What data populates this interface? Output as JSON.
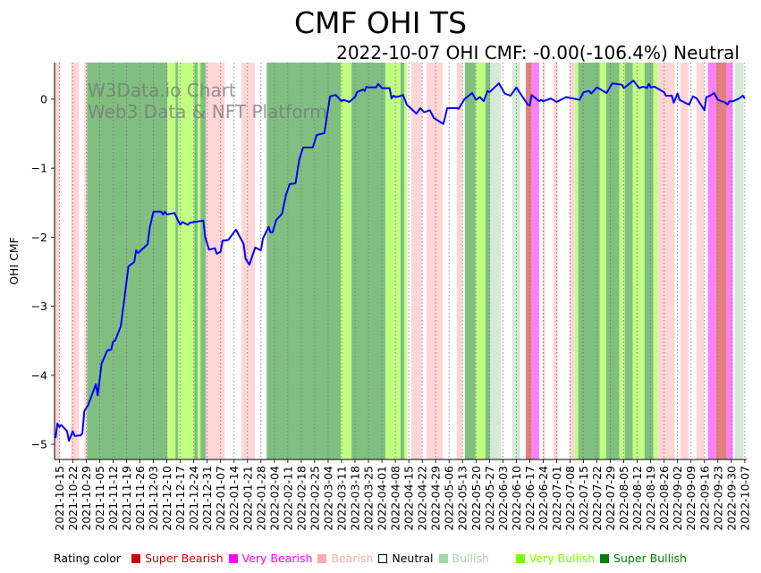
{
  "title": "CMF OHI TS",
  "subtitle": "2022-10-07 OHI CMF: -0.00(-106.4%) Neutral",
  "watermark": [
    "W3Data.io Chart",
    "Web3 Data & NFT Platform"
  ],
  "legend": {
    "label": "Rating color",
    "items": [
      {
        "key": "super_bearish",
        "label": "Super Bearish",
        "color": "#cc0000",
        "band": "#e67f7f"
      },
      {
        "key": "very_bearish",
        "label": "Very Bearish",
        "color": "#ff00ff",
        "band": "#ff80ff"
      },
      {
        "key": "bearish",
        "label": "Bearish",
        "color": "#ffaaaa",
        "band": "#ffd5d5"
      },
      {
        "key": "neutral",
        "label": "Neutral",
        "color": "#000000",
        "band": "#ffffff"
      },
      {
        "key": "bullish",
        "label": "Bullish",
        "color": "#a8d5a8",
        "band": "#d4ead4"
      },
      {
        "key": "very_bullish",
        "label": "Very Bullish",
        "color": "#77ff00",
        "band": "#c0ff80"
      },
      {
        "key": "super_bullish",
        "label": "Super Bullish",
        "color": "#008000",
        "band": "#80bf80"
      }
    ]
  },
  "chart_data": {
    "type": "line",
    "title": "CMF OHI TS",
    "xlabel": "",
    "ylabel": "OHI CMF",
    "x_unit": "days since 2021-10-15",
    "xlim": [
      -2.5,
      358
    ],
    "ylim": [
      -5.22,
      0.53
    ],
    "yticks": [
      0,
      -1,
      -2,
      -3,
      -4,
      -5
    ],
    "ytick_labels": [
      "0",
      "−1",
      "−2",
      "−3",
      "−4",
      "−5"
    ],
    "xtick_step_days": 7,
    "xtick_labels": [
      "2021-10-15",
      "2021-10-22",
      "2021-10-29",
      "2021-11-05",
      "2021-11-12",
      "2021-11-19",
      "2021-11-26",
      "2021-12-03",
      "2021-12-10",
      "2021-12-17",
      "2021-12-24",
      "2021-12-31",
      "2022-01-07",
      "2022-01-14",
      "2022-01-21",
      "2022-01-28",
      "2022-02-04",
      "2022-02-11",
      "2022-02-18",
      "2022-02-25",
      "2022-03-04",
      "2022-03-11",
      "2022-03-18",
      "2022-03-25",
      "2022-04-01",
      "2022-04-08",
      "2022-04-15",
      "2022-04-22",
      "2022-04-29",
      "2022-05-06",
      "2022-05-13",
      "2022-05-20",
      "2022-05-27",
      "2022-06-03",
      "2022-06-10",
      "2022-06-17",
      "2022-06-24",
      "2022-07-01",
      "2022-07-08",
      "2022-07-15",
      "2022-07-22",
      "2022-07-29",
      "2022-08-05",
      "2022-08-12",
      "2022-08-19",
      "2022-08-26",
      "2022-09-02",
      "2022-09-09",
      "2022-09-16",
      "2022-09-23",
      "2022-09-30",
      "2022-10-07"
    ],
    "grid": "vertical dotted",
    "series": [
      {
        "name": "OHI CMF",
        "color": "#0000ff",
        "points": [
          [
            -2,
            -4.91
          ],
          [
            -1,
            -4.7
          ],
          [
            0,
            -4.75
          ],
          [
            1,
            -4.72
          ],
          [
            4,
            -4.81
          ],
          [
            5,
            -4.95
          ],
          [
            7,
            -4.81
          ],
          [
            8,
            -4.88
          ],
          [
            11,
            -4.87
          ],
          [
            12,
            -4.84
          ],
          [
            13,
            -4.52
          ],
          [
            15,
            -4.43
          ],
          [
            19,
            -4.13
          ],
          [
            20,
            -4.29
          ],
          [
            22,
            -3.83
          ],
          [
            25,
            -3.64
          ],
          [
            27,
            -3.63
          ],
          [
            28,
            -3.51
          ],
          [
            29,
            -3.5
          ],
          [
            32,
            -3.29
          ],
          [
            36,
            -2.42
          ],
          [
            39,
            -2.36
          ],
          [
            40,
            -2.19
          ],
          [
            41,
            -2.23
          ],
          [
            46,
            -2.1
          ],
          [
            47,
            -1.87
          ],
          [
            49,
            -1.63
          ],
          [
            53,
            -1.63
          ],
          [
            54,
            -1.67
          ],
          [
            55,
            -1.63
          ],
          [
            56,
            -1.67
          ],
          [
            60,
            -1.65
          ],
          [
            61,
            -1.71
          ],
          [
            63,
            -1.82
          ],
          [
            64,
            -1.78
          ],
          [
            67,
            -1.82
          ],
          [
            68,
            -1.79
          ],
          [
            75,
            -1.76
          ],
          [
            76,
            -2.0
          ],
          [
            78,
            -2.18
          ],
          [
            81,
            -2.16
          ],
          [
            82,
            -2.24
          ],
          [
            84,
            -2.21
          ],
          [
            85,
            -2.05
          ],
          [
            88,
            -2.04
          ],
          [
            92,
            -1.89
          ],
          [
            96,
            -2.1
          ],
          [
            97,
            -2.31
          ],
          [
            99,
            -2.4
          ],
          [
            102,
            -2.15
          ],
          [
            105,
            -2.19
          ],
          [
            106,
            -2.02
          ],
          [
            109,
            -1.85
          ],
          [
            110,
            -1.93
          ],
          [
            111,
            -1.93
          ],
          [
            113,
            -1.75
          ],
          [
            116,
            -1.66
          ],
          [
            118,
            -1.39
          ],
          [
            120,
            -1.23
          ],
          [
            123,
            -1.22
          ],
          [
            125,
            -0.87
          ],
          [
            127,
            -0.7
          ],
          [
            132,
            -0.7
          ],
          [
            134,
            -0.52
          ],
          [
            138,
            -0.49
          ],
          [
            141,
            0.04
          ],
          [
            144,
            0.06
          ],
          [
            147,
            -0.03
          ],
          [
            148,
            -0.01
          ],
          [
            151,
            -0.04
          ],
          [
            153,
            0.01
          ],
          [
            154,
            0.03
          ],
          [
            155,
            0.1
          ],
          [
            158,
            0.14
          ],
          [
            159,
            0.12
          ],
          [
            160,
            0.18
          ],
          [
            161,
            0.17
          ],
          [
            165,
            0.17
          ],
          [
            166,
            0.22
          ],
          [
            168,
            0.16
          ],
          [
            172,
            0.16
          ],
          [
            173,
            0.01
          ],
          [
            174,
            0.05
          ],
          [
            175,
            0.03
          ],
          [
            177,
            0.04
          ],
          [
            179,
            0.06
          ],
          [
            181,
            -0.08
          ],
          [
            186,
            -0.21
          ],
          [
            188,
            -0.13
          ],
          [
            190,
            -0.19
          ],
          [
            193,
            -0.16
          ],
          [
            195,
            -0.27
          ],
          [
            200,
            -0.36
          ],
          [
            202,
            -0.13
          ],
          [
            207,
            -0.13
          ],
          [
            208,
            -0.14
          ],
          [
            211,
            0.0
          ],
          [
            215,
            0.09
          ],
          [
            217,
            -0.01
          ],
          [
            219,
            0.03
          ],
          [
            221,
            -0.03
          ],
          [
            223,
            0.12
          ],
          [
            224,
            0.1
          ],
          [
            229,
            0.23
          ],
          [
            232,
            0.08
          ],
          [
            235,
            0.05
          ],
          [
            238,
            0.17
          ],
          [
            244,
            -0.08
          ],
          [
            245,
            -0.09
          ],
          [
            246,
            0.06
          ],
          [
            250,
            -0.03
          ],
          [
            251,
            -0.01
          ],
          [
            252,
            -0.03
          ],
          [
            256,
            0.01
          ],
          [
            259,
            -0.04
          ],
          [
            264,
            0.03
          ],
          [
            271,
            -0.01
          ],
          [
            273,
            0.1
          ],
          [
            276,
            0.12
          ],
          [
            277,
            0.08
          ],
          [
            280,
            0.17
          ],
          [
            285,
            0.09
          ],
          [
            288,
            0.23
          ],
          [
            293,
            0.21
          ],
          [
            294,
            0.16
          ],
          [
            299,
            0.27
          ],
          [
            302,
            0.16
          ],
          [
            304,
            0.18
          ],
          [
            306,
            0.16
          ],
          [
            307,
            0.22
          ],
          [
            308,
            0.17
          ],
          [
            310,
            0.18
          ],
          [
            315,
            0.1
          ],
          [
            316,
            0.05
          ],
          [
            319,
            0.05
          ],
          [
            320,
            -0.05
          ],
          [
            322,
            0.08
          ],
          [
            323,
            -0.01
          ],
          [
            328,
            -0.08
          ],
          [
            330,
            0.04
          ],
          [
            332,
            0.01
          ],
          [
            336,
            -0.16
          ],
          [
            337,
            0.03
          ],
          [
            339,
            0.05
          ],
          [
            341,
            0.09
          ],
          [
            343,
            -0.01
          ],
          [
            347,
            -0.05
          ],
          [
            348,
            -0.08
          ],
          [
            349,
            -0.03
          ],
          [
            351,
            -0.03
          ],
          [
            354,
            0.01
          ],
          [
            356,
            0.05
          ],
          [
            357,
            0.01
          ]
        ]
      }
    ],
    "rating_bands": [
      [
        -2.5,
        0,
        "bearish"
      ],
      [
        6,
        10.2,
        "bearish"
      ],
      [
        13,
        14.4,
        "bearish"
      ],
      [
        14.4,
        56.3,
        "super_bullish"
      ],
      [
        56.3,
        60.5,
        "very_bullish"
      ],
      [
        60.5,
        61.9,
        "super_bullish"
      ],
      [
        61.9,
        70.3,
        "very_bullish"
      ],
      [
        70.3,
        72.1,
        "super_bullish"
      ],
      [
        72.1,
        73.5,
        "very_bullish"
      ],
      [
        73.5,
        76.3,
        "super_bullish"
      ],
      [
        76.3,
        86.1,
        "bearish"
      ],
      [
        94.9,
        101.9,
        "bearish"
      ],
      [
        108,
        146.6,
        "super_bullish"
      ],
      [
        146.6,
        152.2,
        "very_bullish"
      ],
      [
        152.2,
        169.8,
        "super_bullish"
      ],
      [
        169.8,
        177.7,
        "very_bullish"
      ],
      [
        177.7,
        179.6,
        "super_bullish"
      ],
      [
        179.6,
        181,
        "very_bullish"
      ],
      [
        183.3,
        188.9,
        "bearish"
      ],
      [
        191.2,
        199.6,
        "bearish"
      ],
      [
        207,
        209.9,
        "bearish"
      ],
      [
        211.2,
        216.8,
        "super_bullish"
      ],
      [
        216.8,
        221.9,
        "very_bullish"
      ],
      [
        221.9,
        224.3,
        "super_bullish"
      ],
      [
        224.3,
        229.9,
        "bullish"
      ],
      [
        235.9,
        240.1,
        "bullish"
      ],
      [
        242.9,
        246.1,
        "super_bearish"
      ],
      [
        246.1,
        249.9,
        "very_bearish"
      ],
      [
        251.7,
        253.1,
        "bearish"
      ],
      [
        257.3,
        259.6,
        "bearish"
      ],
      [
        265.7,
        268.5,
        "bearish"
      ],
      [
        268.5,
        270.3,
        "very_bullish"
      ],
      [
        270.3,
        281.5,
        "super_bullish"
      ],
      [
        281.5,
        284.8,
        "very_bullish"
      ],
      [
        284.8,
        291.7,
        "super_bullish"
      ],
      [
        291.7,
        294.5,
        "very_bullish"
      ],
      [
        294.5,
        298.7,
        "super_bullish"
      ],
      [
        298.7,
        304.8,
        "very_bullish"
      ],
      [
        304.8,
        309.4,
        "super_bullish"
      ],
      [
        309.4,
        311.8,
        "very_bullish"
      ],
      [
        311.8,
        320.6,
        "bearish"
      ],
      [
        323.4,
        327.6,
        "bearish"
      ],
      [
        331.7,
        335.9,
        "bearish"
      ],
      [
        337.8,
        342,
        "very_bearish"
      ],
      [
        342,
        347.6,
        "super_bearish"
      ],
      [
        347.6,
        350.8,
        "very_bearish"
      ],
      [
        351.8,
        356.4,
        "bullish"
      ]
    ]
  }
}
